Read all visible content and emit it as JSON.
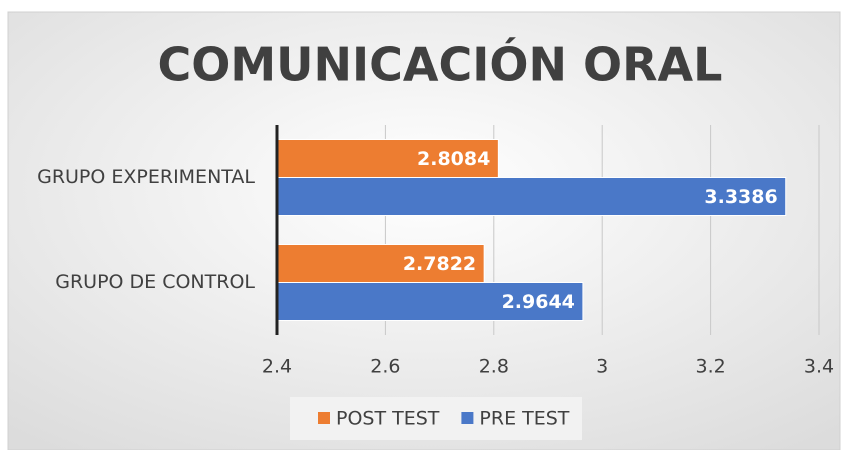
{
  "chart_data": {
    "type": "hbar",
    "title": "COMUNICACIÓN ORAL",
    "categories": [
      "GRUPO EXPERIMENTAL",
      "GRUPO DE CONTROL"
    ],
    "series": [
      {
        "name": "POST TEST",
        "color": "#ed7d31",
        "values": [
          2.8084,
          2.7822
        ]
      },
      {
        "name": "PRE TEST",
        "color": "#4a78c8",
        "values": [
          3.3386,
          2.9644
        ]
      }
    ],
    "xlim": [
      2.4,
      3.4
    ],
    "xticks": [
      2.4,
      2.6,
      2.8,
      3,
      3.2,
      3.4
    ],
    "grid": true,
    "legend": "bottom"
  }
}
